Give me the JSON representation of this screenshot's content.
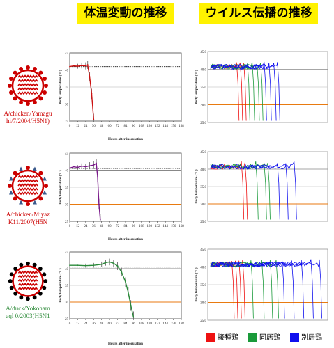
{
  "headers": {
    "left": "体温変動の推移",
    "right": "ウイルス伝播の推移"
  },
  "rows": [
    {
      "strain_lines": [
        "A/chicken/Yamagu",
        "hi/7/2004/H5N1)"
      ],
      "strain_color": "#cc0000",
      "virus_color": "#cc0000",
      "spike_colors": [
        "#cc0000",
        "#cc0000"
      ]
    },
    {
      "strain_lines": [
        "A/chicken/Miyaz",
        "K11/2007(H5N"
      ],
      "strain_color": "#cc0000",
      "virus_color": "#cc0000",
      "spike_colors": [
        "#cc0000",
        "#3a5a8c"
      ]
    },
    {
      "strain_lines": [
        "A/duck/Yokoham",
        "aql 0/2003(H5N1"
      ],
      "strain_color": "#2e8b3a",
      "virus_color": "#cc0000",
      "spike_colors": [
        "#000000",
        "#000000"
      ]
    }
  ],
  "legend": [
    {
      "label": "接種鶏",
      "color": "#ee1111"
    },
    {
      "label": "同居鶏",
      "color": "#1a9a3a"
    },
    {
      "label": "別居鶏",
      "color": "#1010ee"
    }
  ],
  "chart_data": [
    {
      "type": "line",
      "panel": "body-temperature-1",
      "ylabel": "Body temperature (°C)",
      "xlabel": "Hours after inoculation",
      "xticks": [
        0,
        12,
        24,
        36,
        48,
        60,
        72,
        84,
        96,
        108,
        120,
        132,
        144,
        156,
        168
      ],
      "yticks": [
        25,
        30,
        35,
        40,
        45
      ],
      "xlim": [
        0,
        168
      ],
      "ylim": [
        25,
        45
      ],
      "reference_lines": [
        {
          "y": 41,
          "style": "dotted",
          "color": "#333333"
        },
        {
          "y": 40,
          "style": "solid",
          "color": "#888888"
        },
        {
          "y": 30,
          "style": "solid",
          "color": "#e87a10"
        }
      ],
      "series": [
        {
          "color": "#cc1111",
          "x": [
            0,
            6,
            12,
            18,
            24,
            27,
            30,
            33,
            36
          ],
          "y": [
            41,
            41.2,
            41.1,
            41.3,
            41.2,
            41.5,
            38,
            33,
            25.5
          ]
        }
      ]
    },
    {
      "type": "line",
      "panel": "body-temperature-2",
      "ylabel": "Body temperature (°C)",
      "xlabel": "Hours after inoculation",
      "xticks": [
        0,
        12,
        24,
        36,
        48,
        60,
        72,
        84,
        96,
        108,
        120,
        132,
        144,
        156,
        168
      ],
      "yticks": [
        25,
        30,
        35,
        40,
        45
      ],
      "xlim": [
        0,
        168
      ],
      "ylim": [
        25,
        45
      ],
      "reference_lines": [
        {
          "y": 40.5,
          "style": "dotted",
          "color": "#333333"
        },
        {
          "y": 40,
          "style": "solid",
          "color": "#888888"
        },
        {
          "y": 30,
          "style": "solid",
          "color": "#e87a10"
        }
      ],
      "series": [
        {
          "color": "#7a1a8a",
          "x": [
            0,
            6,
            12,
            18,
            24,
            30,
            36,
            40,
            42,
            44,
            46
          ],
          "y": [
            40.6,
            41,
            40.8,
            41.2,
            41,
            41.3,
            41.5,
            42,
            38,
            30,
            25.5
          ]
        }
      ]
    },
    {
      "type": "line",
      "panel": "body-temperature-3",
      "ylabel": "Body temperature (°C)",
      "xlabel": "Hours after inoculation",
      "xticks": [
        0,
        12,
        24,
        36,
        48,
        60,
        72,
        84,
        96,
        108,
        120,
        132,
        144,
        156,
        168
      ],
      "yticks": [
        25,
        30,
        35,
        40,
        45
      ],
      "xlim": [
        0,
        168
      ],
      "ylim": [
        25,
        45
      ],
      "reference_lines": [
        {
          "y": 40.5,
          "style": "dotted",
          "color": "#333333"
        },
        {
          "y": 40,
          "style": "solid",
          "color": "#888888"
        },
        {
          "y": 30,
          "style": "solid",
          "color": "#e87a10"
        }
      ],
      "series": [
        {
          "color": "#2a8a3a",
          "x": [
            0,
            12,
            24,
            36,
            48,
            54,
            60,
            66,
            72,
            78,
            84,
            88,
            92,
            96
          ],
          "y": [
            41,
            41,
            40.9,
            41,
            41.3,
            41.8,
            42,
            41.6,
            40.8,
            39,
            36,
            33,
            29,
            25.5
          ]
        }
      ]
    },
    {
      "type": "line",
      "panel": "transmission-1",
      "ylabel": "Body temperature (°C)",
      "ylim": [
        25,
        45
      ],
      "yticks": [
        "25.0",
        "30.0",
        "35.0",
        "40.0",
        "45.0"
      ],
      "reference_lines": [
        {
          "y": 40,
          "color": "#888888"
        },
        {
          "y": 30,
          "color": "#e87a10"
        },
        {
          "y": 35,
          "color": "#cccccc"
        }
      ],
      "series": [
        {
          "group": "inoculated",
          "color": "#ee1111",
          "drop_at": [
            0.24,
            0.27,
            0.3
          ]
        },
        {
          "group": "contact",
          "color": "#1a9a3a",
          "drop_at": [
            0.33,
            0.37,
            0.41,
            0.44
          ]
        },
        {
          "group": "separate",
          "color": "#1010ee",
          "drop_at": [
            0.47,
            0.51,
            0.55,
            0.58
          ]
        }
      ]
    },
    {
      "type": "line",
      "panel": "transmission-2",
      "ylabel": "Body temperature (°C)",
      "ylim": [
        25,
        45
      ],
      "yticks": [
        "25.0",
        "30.0",
        "35.0",
        "40.0",
        "45.0"
      ],
      "reference_lines": [
        {
          "y": 40,
          "color": "#888888"
        },
        {
          "y": 30,
          "color": "#e87a10"
        },
        {
          "y": 35,
          "color": "#cccccc"
        }
      ],
      "series": [
        {
          "group": "inoculated",
          "color": "#ee1111",
          "drop_at": [
            0.28,
            0.31
          ]
        },
        {
          "group": "contact",
          "color": "#1a9a3a",
          "drop_at": [
            0.4,
            0.47,
            0.5
          ]
        },
        {
          "group": "separate",
          "color": "#1010ee",
          "drop_at": [
            0.58,
            0.65,
            0.72
          ]
        }
      ]
    },
    {
      "type": "line",
      "panel": "transmission-3",
      "ylabel": "Body temperature (°C)",
      "ylim": [
        25,
        45
      ],
      "yticks": [
        "25.0",
        "30.0",
        "35.0",
        "40.0",
        "45.0"
      ],
      "reference_lines": [
        {
          "y": 40,
          "color": "#888888"
        },
        {
          "y": 30,
          "color": "#e87a10"
        },
        {
          "y": 35,
          "color": "#cccccc"
        }
      ],
      "series": [
        {
          "group": "inoculated",
          "color": "#ee1111",
          "drop_at": [
            0.2,
            0.23,
            0.26,
            0.29
          ]
        },
        {
          "group": "contact",
          "color": "#1a9a3a",
          "drop_at": [
            0.36,
            0.45,
            0.52,
            0.57
          ]
        },
        {
          "group": "separate",
          "color": "#1010ee",
          "drop_at": [
            0.62,
            0.7,
            0.78,
            0.86,
            0.93
          ]
        }
      ]
    }
  ]
}
